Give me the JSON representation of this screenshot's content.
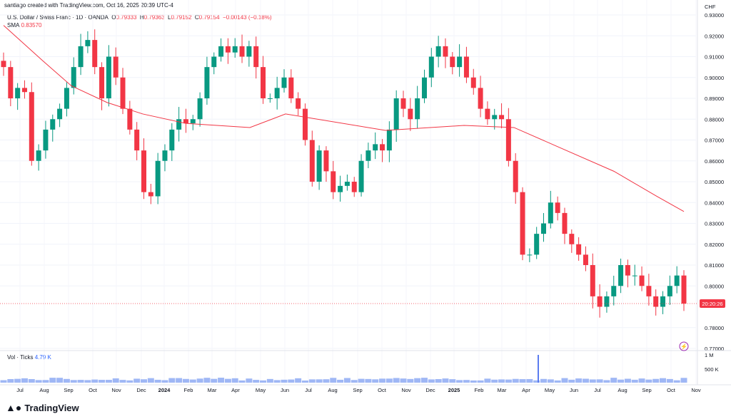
{
  "header": {
    "credit": "santiago created with TradingView.com, Oct 16, 2025 20:39 UTC-4"
  },
  "legend": {
    "symbol": "U.S. Dollar / Swiss Franc · 1D · OANDA",
    "o": "O",
    "o_val": "0.79333",
    "h": "H",
    "h_val": "0.79363",
    "l": "L",
    "l_val": "0.79152",
    "c": "C",
    "c_val": "0.79154",
    "change": "−0.00143 (−0.18%)"
  },
  "sma": {
    "label": "SMA",
    "value": "0.83570"
  },
  "volume": {
    "label": "Vol · Ticks",
    "value": "4.79 K",
    "ticks": [
      "1 M",
      "500 K"
    ]
  },
  "countdown": "20:20:26",
  "currency": "CHF",
  "brand": "TradingView",
  "colors": {
    "up": "#089981",
    "down": "#f23645",
    "sma": "#f23645",
    "volume": "#9fb7f5"
  },
  "chart_data": {
    "type": "candlestick",
    "title": "U.S. Dollar / Swiss Franc · 1D · OANDA",
    "ylabel": "CHF",
    "ylim": [
      0.77,
      0.93
    ],
    "yticks": [
      "0.93000",
      "0.92000",
      "0.91000",
      "0.90000",
      "0.89000",
      "0.88000",
      "0.87000",
      "0.86000",
      "0.85000",
      "0.84000",
      "0.83000",
      "0.82000",
      "0.81000",
      "0.80000",
      "0.78000",
      "0.77000"
    ],
    "xticks": [
      "Jul",
      "Aug",
      "Sep",
      "Oct",
      "Nov",
      "Dec",
      "2024",
      "Feb",
      "Mar",
      "Apr",
      "May",
      "Jun",
      "Jul",
      "Aug",
      "Sep",
      "Oct",
      "Nov",
      "Dec",
      "2025",
      "Feb",
      "Mar",
      "Apr",
      "May",
      "Jun",
      "Jul",
      "Aug",
      "Sep",
      "Oct",
      "Nov"
    ],
    "date_range": [
      "2023-06-15",
      "2025-10-16"
    ],
    "closes": [
      0.905,
      0.89,
      0.895,
      0.893,
      0.86,
      0.865,
      0.875,
      0.88,
      0.885,
      0.895,
      0.905,
      0.915,
      0.918,
      0.905,
      0.89,
      0.91,
      0.9,
      0.885,
      0.875,
      0.865,
      0.845,
      0.843,
      0.86,
      0.865,
      0.875,
      0.88,
      0.878,
      0.88,
      0.89,
      0.905,
      0.91,
      0.915,
      0.912,
      0.915,
      0.91,
      0.915,
      0.905,
      0.89,
      0.89,
      0.895,
      0.9,
      0.89,
      0.885,
      0.87,
      0.85,
      0.865,
      0.855,
      0.845,
      0.848,
      0.85,
      0.845,
      0.86,
      0.865,
      0.868,
      0.865,
      0.875,
      0.89,
      0.885,
      0.88,
      0.89,
      0.9,
      0.91,
      0.915,
      0.91,
      0.905,
      0.91,
      0.9,
      0.895,
      0.885,
      0.88,
      0.882,
      0.88,
      0.86,
      0.845,
      0.815,
      0.815,
      0.825,
      0.83,
      0.84,
      0.835,
      0.825,
      0.82,
      0.815,
      0.81,
      0.795,
      0.79,
      0.795,
      0.8,
      0.81,
      0.805,
      0.805,
      0.8,
      0.795,
      0.79,
      0.795,
      0.8,
      0.805,
      0.7915
    ],
    "sma_200": [
      0.925,
      0.908,
      0.896,
      0.888,
      0.8825,
      0.878,
      0.876,
      0.8825,
      0.8746,
      0.877,
      0.876,
      0.867,
      0.855,
      0.843,
      0.8357
    ],
    "volume_spike": {
      "date": "2025-04",
      "value_k": 900
    },
    "last_price": 0.79154
  }
}
